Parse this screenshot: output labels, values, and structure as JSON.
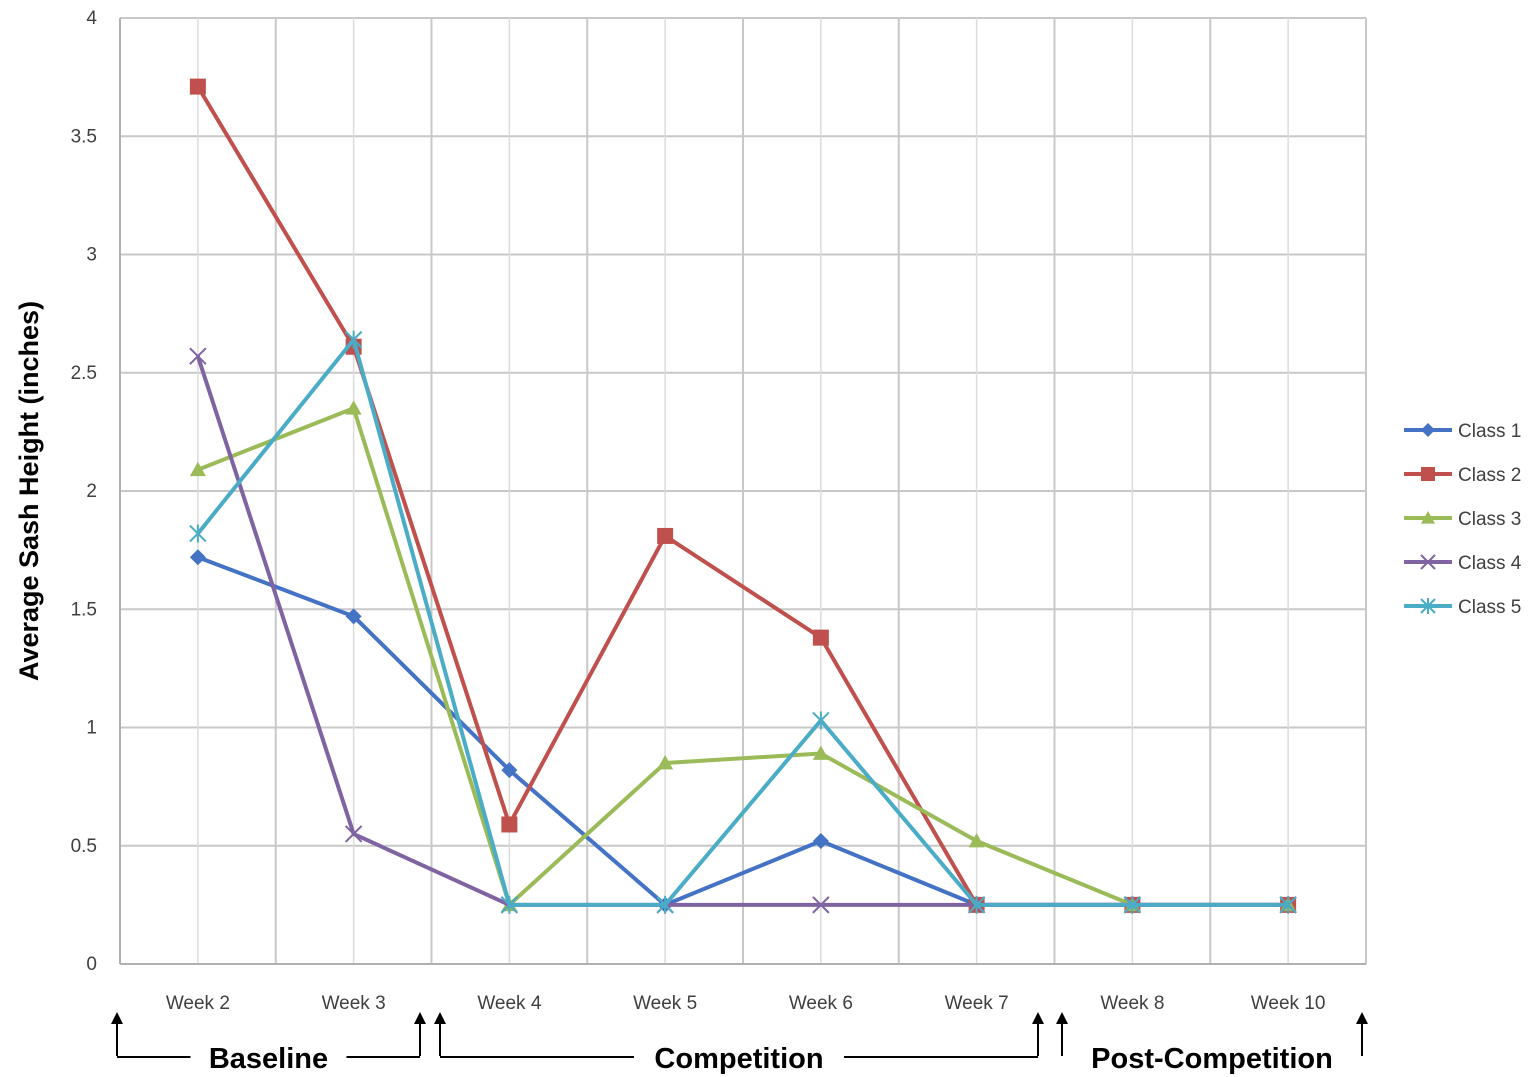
{
  "chart_data": {
    "type": "line",
    "ylabel": "Average Sash Height (inches)",
    "xlabel": "",
    "ylim": [
      0,
      4
    ],
    "yticks": [
      0,
      0.5,
      1,
      1.5,
      2,
      2.5,
      3,
      3.5,
      4
    ],
    "ytick_labels": [
      "0",
      "0.5",
      "1",
      "1.5",
      "2",
      "2.5",
      "3",
      "3.5",
      "4"
    ],
    "grid": true,
    "legend_position": "right",
    "categories": [
      "Week 2",
      "Week 3",
      "Week 4",
      "Week 5",
      "Week 6",
      "Week 7",
      "Week 8",
      "Week 10"
    ],
    "series": [
      {
        "name": "Class 1",
        "color": "#4472C4",
        "marker": "diamond",
        "values": [
          1.72,
          1.47,
          0.82,
          0.25,
          0.52,
          0.25,
          0.25,
          0.25
        ]
      },
      {
        "name": "Class 2",
        "color": "#C0504D",
        "marker": "square",
        "values": [
          3.71,
          2.61,
          0.59,
          1.81,
          1.38,
          0.25,
          0.25,
          0.25
        ]
      },
      {
        "name": "Class 3",
        "color": "#9BBB59",
        "marker": "triangle",
        "values": [
          2.09,
          2.35,
          0.25,
          0.85,
          0.89,
          0.52,
          0.25,
          0.25
        ]
      },
      {
        "name": "Class 4",
        "color": "#8064A2",
        "marker": "x",
        "values": [
          2.57,
          0.55,
          0.25,
          0.25,
          0.25,
          0.25,
          0.25,
          0.25
        ]
      },
      {
        "name": "Class 5",
        "color": "#4BACC6",
        "marker": "star",
        "values": [
          1.82,
          2.64,
          0.25,
          0.25,
          1.03,
          0.25,
          0.25,
          0.25
        ]
      }
    ],
    "phases": [
      {
        "label": "Baseline",
        "from": "Week 2",
        "to": "Week 3"
      },
      {
        "label": "Competition",
        "from": "Week 4",
        "to": "Week 7"
      },
      {
        "label": "Post-Competition",
        "from": "Week 8",
        "to": "Week 10"
      }
    ]
  }
}
